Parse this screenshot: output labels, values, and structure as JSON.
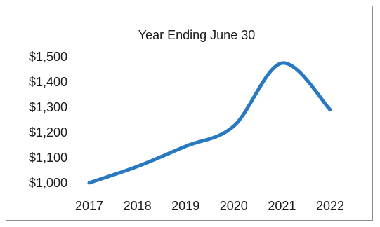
{
  "chart_data": {
    "type": "line",
    "title": "Year Ending June 30",
    "xlabel": "",
    "ylabel": "",
    "x": [
      "2017",
      "2018",
      "2019",
      "2020",
      "2021",
      "2022"
    ],
    "series": [
      {
        "values": [
          1000,
          1065,
          1145,
          1225,
          1475,
          1290
        ]
      }
    ],
    "ylim": [
      1000,
      1500
    ],
    "yticks": [
      "$1,000",
      "$1,100",
      "$1,200",
      "$1,300",
      "$1,400",
      "$1,500"
    ],
    "grid": false,
    "legend": "none",
    "colors": {
      "line": "#2878c2"
    }
  }
}
